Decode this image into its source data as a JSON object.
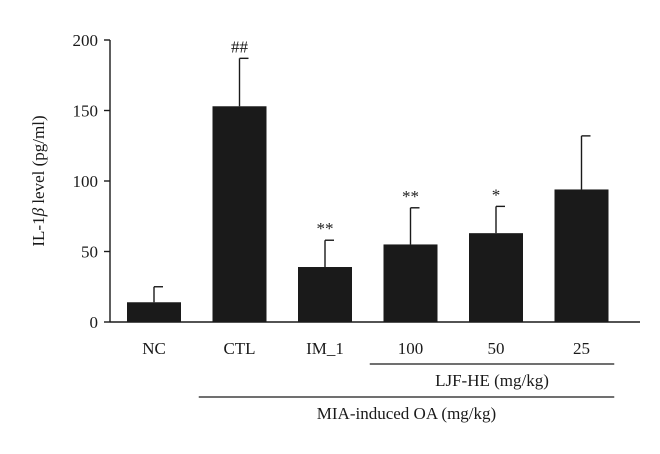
{
  "chart_data": {
    "type": "bar",
    "categories": [
      "NC",
      "CTL",
      "IM_1",
      "100",
      "50",
      "25"
    ],
    "values": [
      14,
      153,
      39,
      55,
      63,
      94
    ],
    "errors": [
      11,
      34,
      19,
      26,
      19,
      38
    ],
    "annotations": [
      "",
      "##",
      "**",
      "**",
      "*",
      ""
    ],
    "ylabel_prefix": "IL-1",
    "ylabel_symbol": "β",
    "ylabel_suffix": " level (pg/ml)",
    "ylim": [
      0,
      200
    ],
    "yticks": [
      0,
      50,
      100,
      150,
      200
    ],
    "ytick_labels": [
      "0",
      "50",
      "100",
      "150",
      "200"
    ],
    "groups": [
      {
        "label": "LJF-HE (mg/kg)",
        "from_category": 3,
        "to_category": 5
      },
      {
        "label": "MIA-induced OA (mg/kg)",
        "from_category": 1,
        "to_category": 5
      }
    ],
    "grid": false,
    "colors": {
      "bar": "#1a1a1a",
      "axis": "#1a1a1a"
    }
  }
}
